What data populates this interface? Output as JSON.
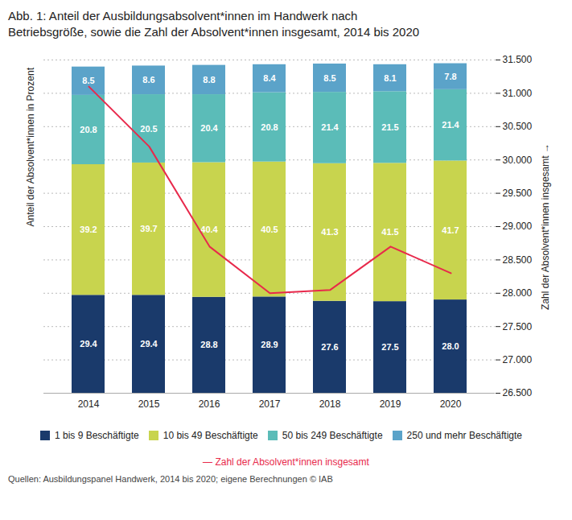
{
  "chart_data": {
    "type": "bar",
    "stacked": true,
    "title": "Abb. 1: Anteil der Ausbildungsabsolvent*innen im Handwerk nach",
    "subtitle": "Betriebsgröße, sowie die Zahl der Absolvent*innen insgesamt, 2014 bis 2020",
    "categories": [
      "2014",
      "2015",
      "2016",
      "2017",
      "2018",
      "2019",
      "2020"
    ],
    "series": [
      {
        "name": "1 bis 9 Beschäftigte",
        "color": "#1a3a6b",
        "values": [
          29.4,
          29.4,
          28.8,
          28.9,
          27.6,
          27.5,
          28.0
        ],
        "value_labels": [
          "29.4",
          "29.4",
          "28.8",
          "28.9",
          "27.6",
          "27.5",
          "28.0"
        ]
      },
      {
        "name": "10 bis 49 Beschäftigte",
        "color": "#c8d44e",
        "values": [
          39.2,
          39.7,
          40.4,
          40.5,
          41.3,
          41.5,
          41.7
        ]
      },
      {
        "name": "50 bis 249 Beschäftigte",
        "color": "#5bbcb8",
        "values": [
          20.8,
          20.5,
          20.4,
          20.8,
          21.4,
          21.5,
          21.4
        ]
      },
      {
        "name": "250 und mehr Beschäftigte",
        "color": "#5ba3c9",
        "values": [
          8.5,
          8.6,
          8.8,
          8.4,
          8.5,
          8.1,
          7.8
        ]
      },
      {
        "type": "line",
        "axis": "y2",
        "color": "#e8294b",
        "values": [
          31100,
          30200,
          28700,
          28000,
          28050,
          28700,
          28300
        ]
      }
    ],
    "data_labels": true,
    "ylabel": "Anteil der Absolvent*innen in Prozent",
    "ylim": [
      0,
      100
    ],
    "yticks": [],
    "y2label": "Zahl der Absolvent*innen insgesamt",
    "y2lim": [
      26500,
      31500
    ],
    "y2ticks": [
      {
        "value": 26500,
        "label": "26.500"
      },
      {
        "value": 27000,
        "label": "27.000"
      },
      {
        "value": 27500,
        "label": "27.500"
      },
      {
        "value": 28000,
        "label": "28.000"
      },
      {
        "value": 28500,
        "label": "28.500"
      },
      {
        "value": 29000,
        "label": "29.000"
      },
      {
        "value": 29500,
        "label": "29.500"
      },
      {
        "value": 30000,
        "label": "30.000"
      },
      {
        "value": 30500,
        "label": "30.500"
      },
      {
        "value": 31000,
        "label": "31.000"
      },
      {
        "value": 31500,
        "label": "31.500"
      }
    ],
    "grid": true,
    "legend": "bottom",
    "annotation": "— Zahl der Absolvent*innen insgesamt",
    "source": "Quellen: Ausbildungspanel Handwerk, 2014 bis 2020; eigene Berechnungen © IAB"
  }
}
